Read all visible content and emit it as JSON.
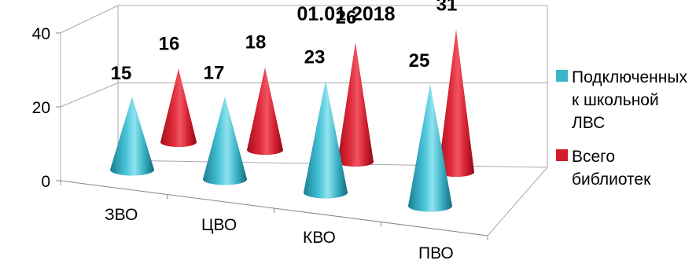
{
  "chart_data": {
    "type": "bar",
    "style": "3d-cone",
    "title": "01.01.2018",
    "categories": [
      "ЗВО",
      "ЦВО",
      "КВО",
      "ПВО"
    ],
    "series": [
      {
        "name": "Подключенных к школьной ЛВС",
        "values": [
          15,
          17,
          23,
          25
        ],
        "color": "#3cb4c8"
      },
      {
        "name": "Всего библиотек",
        "values": [
          16,
          18,
          26,
          31
        ],
        "color": "#d41c2c"
      }
    ],
    "yticks": [
      0,
      20,
      40
    ],
    "ylim": [
      0,
      40
    ],
    "grid": true,
    "legend_position": "right"
  },
  "legend": {
    "items": [
      {
        "label": "Подключенных к школьной ЛВС",
        "color": "#3cb4c8"
      },
      {
        "label": "Всего библиотек",
        "color": "#d41c2c"
      }
    ]
  }
}
